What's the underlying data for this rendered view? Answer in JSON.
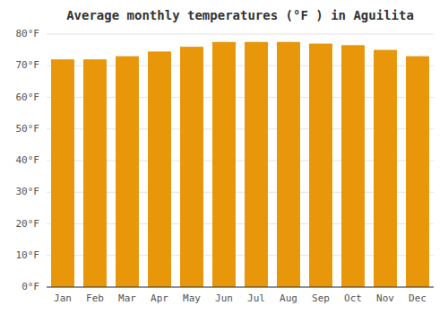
{
  "chart_data": {
    "type": "bar",
    "title": "Average monthly temperatures (°F ) in Aguilita",
    "categories": [
      "Jan",
      "Feb",
      "Mar",
      "Apr",
      "May",
      "Jun",
      "Jul",
      "Aug",
      "Sep",
      "Oct",
      "Nov",
      "Dec"
    ],
    "values": [
      72,
      72,
      73,
      74.5,
      76,
      77.5,
      77.5,
      77.5,
      77,
      76.5,
      75,
      73
    ],
    "color": "#E8960A",
    "ylim": [
      0,
      80
    ],
    "yticks": [
      {
        "value": 0,
        "label": "0°F"
      },
      {
        "value": 10,
        "label": "10°F"
      },
      {
        "value": 20,
        "label": "20°F"
      },
      {
        "value": 30,
        "label": "30°F"
      },
      {
        "value": 40,
        "label": "40°F"
      },
      {
        "value": 50,
        "label": "50°F"
      },
      {
        "value": 60,
        "label": "60°F"
      },
      {
        "value": 70,
        "label": "70°F"
      },
      {
        "value": 80,
        "label": "80°F"
      }
    ],
    "grid": true
  }
}
